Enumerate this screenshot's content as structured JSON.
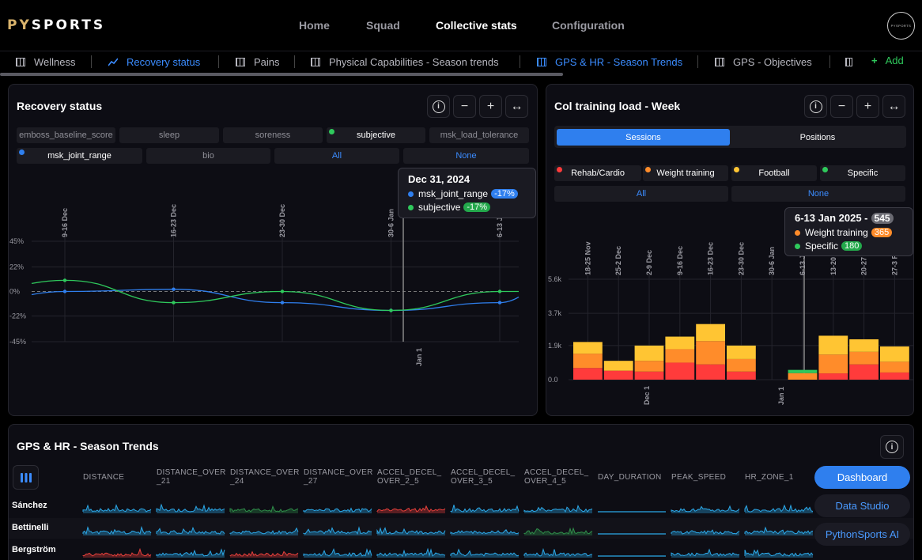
{
  "app": {
    "logo_left": "PY",
    "logo_right": "SPORTS",
    "avatar_text": "PYSPORTS"
  },
  "nav": {
    "items": [
      {
        "label": "Home"
      },
      {
        "label": "Squad"
      },
      {
        "label": "Collective stats",
        "active": true
      },
      {
        "label": "Configuration"
      }
    ]
  },
  "tabs": {
    "items": [
      {
        "label": "Wellness",
        "icon": "table-icon"
      },
      {
        "label": "Recovery status",
        "icon": "line-chart-icon",
        "active": true
      },
      {
        "label": "Pains",
        "icon": "table-icon"
      },
      {
        "label": "Physical Capabilities - Season trends",
        "icon": "table-icon"
      },
      {
        "label": "GPS & HR - Season Trends",
        "icon": "table-icon",
        "active": true
      },
      {
        "label": "GPS - Objectives",
        "icon": "table-icon"
      }
    ],
    "add_label": "Add"
  },
  "recovery": {
    "title": "Recovery status",
    "metrics_row1": [
      "emboss_baseline_score",
      "sleep",
      "soreness",
      "subjective",
      "msk_load_tolerance"
    ],
    "metrics_row2": [
      "msk_joint_range",
      "bio"
    ],
    "all_label": "All",
    "none_label": "None",
    "tooltip": {
      "date": "Dec 31, 2024",
      "rows": [
        {
          "name": "msk_joint_range",
          "value": "-17%",
          "color": "#2f7fee"
        },
        {
          "name": "subjective",
          "value": "-17%",
          "color": "#2fc95c"
        }
      ]
    },
    "yticks": [
      "45%",
      "22%",
      "0%",
      "-22%",
      "-45%"
    ],
    "xticks": [
      "9-16 Dec",
      "16-23 Dec",
      "23-30 Dec",
      "30-6 Jan",
      "6-13 J"
    ],
    "bottom_label": "Jan 1"
  },
  "load": {
    "title": "Col training load - Week",
    "seg_options": [
      "Sessions",
      "Positions"
    ],
    "legend": [
      {
        "name": "Rehab/Cardio",
        "color": "#ff3b3b"
      },
      {
        "name": "Weight training",
        "color": "#ff8c2a"
      },
      {
        "name": "Football",
        "color": "#ffc533"
      },
      {
        "name": "Specific",
        "color": "#2fc95c"
      }
    ],
    "all_label": "All",
    "none_label": "None",
    "tooltip": {
      "date": "6-13 Jan 2025 -",
      "total": "545",
      "rows": [
        {
          "name": "Weight training",
          "value": "365",
          "color": "#ff8c2a"
        },
        {
          "name": "Specific",
          "value": "180",
          "color": "#2fc95c"
        }
      ]
    },
    "yticks": [
      "5.6k",
      "3.7k",
      "1.9k",
      "0.0"
    ],
    "xticks": [
      "18-25 Nov",
      "25-2 Dec",
      "2-9 Dec",
      "9-16 Dec",
      "16-23 Dec",
      "23-30 Dec",
      "30-6 Jan",
      "6-13 J",
      "13-20",
      "20-27",
      "27-3 F"
    ],
    "bottom_labels": [
      "Dec 1",
      "Jan 1"
    ]
  },
  "gps": {
    "title": "GPS & HR - Season Trends",
    "columns": [
      [
        "DISTANCE"
      ],
      [
        "DISTANCE_OVER",
        "_21"
      ],
      [
        "DISTANCE_OVER",
        "_24"
      ],
      [
        "DISTANCE_OVER",
        "_27"
      ],
      [
        "ACCEL_DECEL_",
        "OVER_2_5"
      ],
      [
        "ACCEL_DECEL_",
        "OVER_3_5"
      ],
      [
        "ACCEL_DECEL_",
        "OVER_4_5"
      ],
      [
        "DAY_DURATION"
      ],
      [
        "PEAK_SPEED"
      ],
      [
        "HR_ZONE_1"
      ]
    ],
    "players": [
      "Sánchez",
      "Bettinelli",
      "Bergström"
    ]
  },
  "floating": {
    "dashboard": "Dashboard",
    "studio": "Data Studio",
    "ai": "PythonSports AI"
  },
  "colors": {
    "accent": "#2f7fee",
    "green": "#2fc95c",
    "red": "#ff3b3b",
    "orange": "#ff8c2a",
    "yellow": "#ffc533"
  },
  "chart_data": [
    {
      "type": "line",
      "title": "Recovery status",
      "x": [
        "9-16 Dec",
        "16-23 Dec",
        "23-30 Dec",
        "30-6 Jan",
        "6-13 J"
      ],
      "ylim": [
        -45,
        45
      ],
      "series": [
        {
          "name": "msk_joint_range",
          "values": [
            0,
            2,
            -10,
            -17,
            -10
          ]
        },
        {
          "name": "subjective",
          "values": [
            10,
            -10,
            0,
            -17,
            0
          ]
        }
      ]
    },
    {
      "type": "bar",
      "title": "Col training load - Week",
      "categories": [
        "18-25 Nov",
        "25-2 Dec",
        "2-9 Dec",
        "9-16 Dec",
        "16-23 Dec",
        "23-30 Dec",
        "30-6 Jan",
        "6-13 J",
        "13-20",
        "20-27",
        "27-3 F"
      ],
      "ylim": [
        0,
        5600
      ],
      "series": [
        {
          "name": "Rehab/Cardio",
          "values": [
            650,
            500,
            450,
            950,
            850,
            450,
            0,
            0,
            350,
            850,
            400
          ]
        },
        {
          "name": "Weight training",
          "values": [
            800,
            0,
            600,
            750,
            1300,
            700,
            0,
            365,
            1050,
            700,
            600
          ]
        },
        {
          "name": "Football",
          "values": [
            650,
            550,
            850,
            700,
            950,
            750,
            0,
            0,
            1050,
            700,
            850
          ]
        },
        {
          "name": "Specific",
          "values": [
            0,
            0,
            0,
            0,
            0,
            0,
            0,
            180,
            0,
            0,
            0
          ]
        }
      ]
    }
  ]
}
